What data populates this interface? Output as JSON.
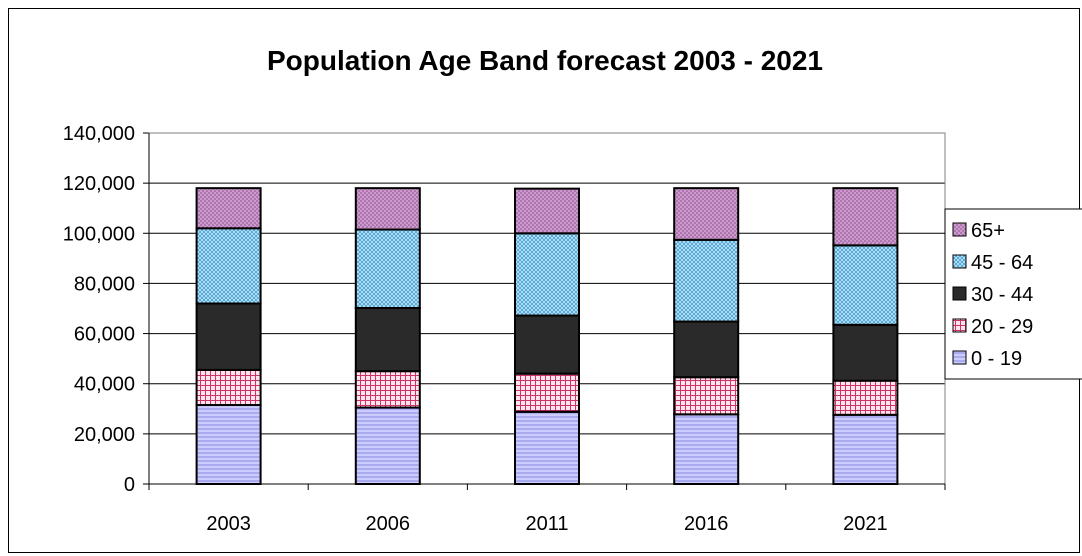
{
  "chart_data": {
    "type": "bar",
    "stacked": true,
    "title": "Population Age Band forecast 2003 - 2021",
    "xlabel": "",
    "ylabel": "",
    "categories": [
      "2003",
      "2006",
      "2011",
      "2016",
      "2021"
    ],
    "ylim": [
      0,
      140000
    ],
    "yticks": [
      0,
      20000,
      40000,
      60000,
      80000,
      100000,
      120000,
      140000
    ],
    "ytick_labels": [
      "0",
      "20,000",
      "40,000",
      "60,000",
      "80,000",
      "100,000",
      "120,000",
      "140,000"
    ],
    "grid": true,
    "legend_position": "right",
    "series": [
      {
        "name": "0 - 19",
        "values": [
          31500,
          30500,
          28800,
          27800,
          27600
        ],
        "color": "#ccccff",
        "pattern": "horizontal-lines"
      },
      {
        "name": "20 - 29",
        "values": [
          14000,
          14500,
          15200,
          14800,
          13600
        ],
        "color": "#ffccdd",
        "pattern": "grid"
      },
      {
        "name": "30 - 44",
        "values": [
          26500,
          25200,
          23200,
          22200,
          22300
        ],
        "color": "#2a2a2a",
        "pattern": "solid"
      },
      {
        "name": "45 - 64",
        "values": [
          30000,
          31300,
          32800,
          32600,
          31700
        ],
        "color": "#99ddff",
        "pattern": "crosshatch"
      },
      {
        "name": "65+",
        "values": [
          16000,
          16500,
          17800,
          20600,
          22800
        ],
        "color": "#bb88bb",
        "pattern": "dots"
      }
    ]
  }
}
